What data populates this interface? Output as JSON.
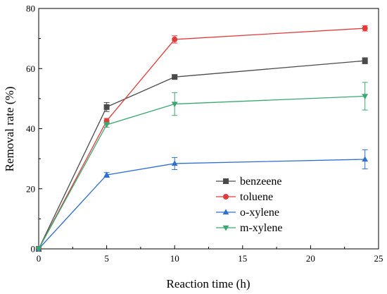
{
  "chart_data": {
    "type": "line",
    "xlabel": "Reaction time (h)",
    "ylabel": "Removal rate (%)",
    "xlim": [
      0,
      25
    ],
    "ylim": [
      0,
      80
    ],
    "xticks": [
      0,
      5,
      10,
      15,
      20,
      25
    ],
    "yticks": [
      0,
      20,
      40,
      60,
      80
    ],
    "grid": false,
    "legend_position": "bottom-right",
    "x": [
      0,
      5,
      10,
      24
    ],
    "series": [
      {
        "name": "benzeene",
        "color": "#4a4a4a",
        "marker": "square",
        "values": [
          0,
          47.2,
          57.2,
          62.6
        ],
        "errors": [
          0,
          1.5,
          0.6,
          1.0
        ]
      },
      {
        "name": "toluene",
        "color": "#e03c3c",
        "marker": "circle",
        "values": [
          0,
          42.6,
          69.7,
          73.4
        ],
        "errors": [
          0,
          0.8,
          1.2,
          0.9
        ]
      },
      {
        "name": "o-xylene",
        "color": "#2f6fcf",
        "marker": "triangle-up",
        "values": [
          0,
          24.6,
          28.4,
          29.8
        ],
        "errors": [
          0,
          0.8,
          2.0,
          3.2
        ]
      },
      {
        "name": "m-xylene",
        "color": "#3aa870",
        "marker": "triangle-down",
        "values": [
          0,
          41.3,
          48.2,
          50.8
        ],
        "errors": [
          0,
          0.8,
          3.8,
          4.6
        ]
      }
    ]
  }
}
